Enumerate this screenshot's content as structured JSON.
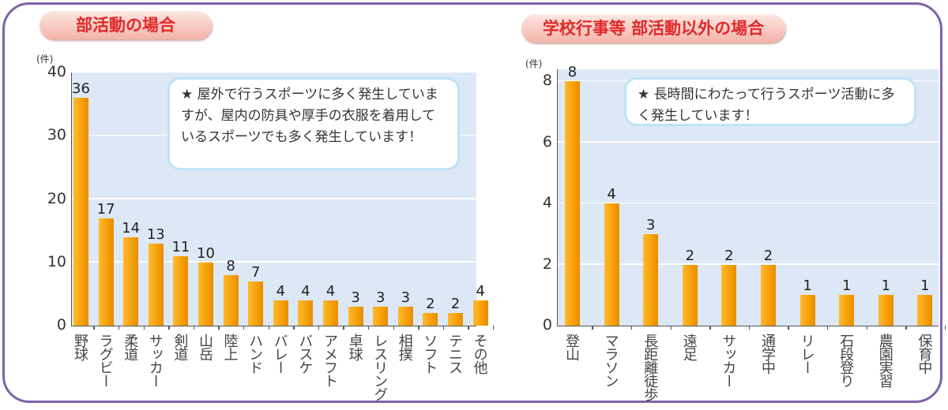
{
  "chart_data": [
    {
      "type": "bar",
      "title": "部活動の場合",
      "ylabel": "(件)",
      "ylim": [
        0,
        40
      ],
      "yticks": [
        0,
        10,
        20,
        30,
        40
      ],
      "categories": [
        "野球",
        "ラグビー",
        "柔道",
        "サッカー",
        "剣道",
        "山岳",
        "陸上",
        "ハンド",
        "バレー",
        "バスケ",
        "アメフト",
        "卓球",
        "レスリング",
        "相撲",
        "ソフト",
        "テニス",
        "その他"
      ],
      "values": [
        36,
        17,
        14,
        13,
        11,
        10,
        8,
        7,
        4,
        4,
        4,
        3,
        3,
        3,
        2,
        2,
        4
      ],
      "annotation": "★ 屋外で行うスポーツに多く発生していますが、屋内の防具や厚手の衣服を着用しているスポーツでも多く発生しています！",
      "bar_color": "#f39a00",
      "grid": true
    },
    {
      "type": "bar",
      "title": "学校行事等 部活動以外の場合",
      "ylabel": "(件)",
      "ylim": [
        0,
        8.4
      ],
      "yticks": [
        0,
        2,
        4,
        6,
        8
      ],
      "categories": [
        "登山",
        "マラソン",
        "長距離徒歩",
        "遠足",
        "サッカー",
        "通学中",
        "リレー",
        "石段登り",
        "農園実習",
        "保育中"
      ],
      "values": [
        8,
        4,
        3,
        2,
        2,
        2,
        1,
        1,
        1,
        1
      ],
      "annotation": "★ 長時間にわたって行うスポーツ活動に多く発生しています！",
      "bar_color": "#f39a00",
      "grid": true
    }
  ]
}
